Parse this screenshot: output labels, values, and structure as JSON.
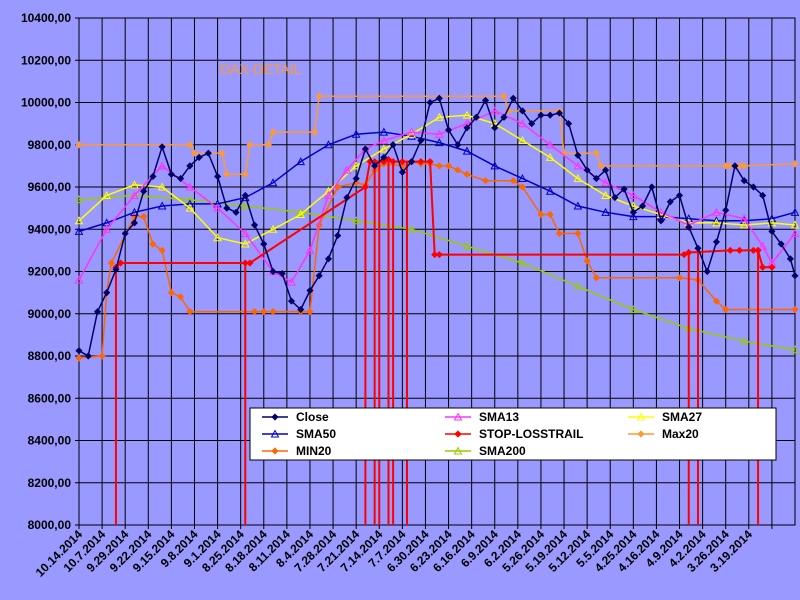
{
  "chart_data": {
    "type": "line",
    "title": "DAX-DETAIL",
    "title_color": "#ff9933",
    "ylim": [
      8000,
      10400
    ],
    "ytick_values": [
      8000,
      8200,
      8400,
      8600,
      8800,
      9000,
      9200,
      9400,
      9600,
      9800,
      10000,
      10200,
      10400
    ],
    "ytick_labels": [
      "8000,00",
      "8200,00",
      "8400,00",
      "8600,00",
      "8800,00",
      "9000,00",
      "9200,00",
      "9400,00",
      "9600,00",
      "9800,00",
      "10000,00",
      "10200,00",
      "10400,00"
    ],
    "x_index_range": [
      0,
      155
    ],
    "xtick_index": [
      0,
      5,
      10,
      15,
      20,
      25,
      30,
      35,
      40,
      45,
      50,
      55,
      60,
      65,
      70,
      75,
      80,
      85,
      90,
      95,
      100,
      105,
      110,
      115,
      120,
      125,
      130,
      135,
      140,
      145,
      150
    ],
    "xtick_labels": [
      "10.14.2014",
      "10.7.2014",
      "9.29.2014",
      "9.22.2014",
      "9.15.2014",
      "9.8.2014",
      "9.1.2014",
      "8.25.2014",
      "8.18.2014",
      "8.11.2014",
      "8.4.2014",
      "7.28.2014",
      "7.21.2014",
      "7.14.2014",
      "7.7.2014",
      "6.30.2014",
      "6.23.2014",
      "6.16.2014",
      "6.9.2014",
      "6.2.2014",
      "5.26.2014",
      "5.19.2014",
      "5.12.2014",
      "5.5.2014",
      "4.25.2014",
      "4.16.2014",
      "4.9.2014",
      "4.2.2014",
      "3.26.2014",
      "3.19.2014",
      ""
    ],
    "legend_placement": "bottom-center",
    "series": [
      {
        "name": "Close",
        "color": "#000066",
        "marker": "diamond",
        "points": [
          [
            0,
            8825
          ],
          [
            2,
            8800
          ],
          [
            4,
            9010
          ],
          [
            6,
            9100
          ],
          [
            8,
            9210
          ],
          [
            10,
            9380
          ],
          [
            12,
            9430
          ],
          [
            14,
            9580
          ],
          [
            16,
            9650
          ],
          [
            18,
            9790
          ],
          [
            20,
            9660
          ],
          [
            22,
            9640
          ],
          [
            24,
            9700
          ],
          [
            26,
            9740
          ],
          [
            28,
            9760
          ],
          [
            30,
            9650
          ],
          [
            32,
            9500
          ],
          [
            34,
            9480
          ],
          [
            36,
            9560
          ],
          [
            38,
            9420
          ],
          [
            40,
            9330
          ],
          [
            42,
            9200
          ],
          [
            44,
            9190
          ],
          [
            46,
            9060
          ],
          [
            48,
            9020
          ],
          [
            50,
            9110
          ],
          [
            52,
            9180
          ],
          [
            54,
            9260
          ],
          [
            56,
            9370
          ],
          [
            58,
            9550
          ],
          [
            60,
            9640
          ],
          [
            62,
            9780
          ],
          [
            64,
            9700
          ],
          [
            66,
            9740
          ],
          [
            68,
            9800
          ],
          [
            70,
            9670
          ],
          [
            72,
            9720
          ],
          [
            74,
            9820
          ],
          [
            76,
            10000
          ],
          [
            78,
            10020
          ],
          [
            80,
            9870
          ],
          [
            82,
            9800
          ],
          [
            84,
            9880
          ],
          [
            86,
            9930
          ],
          [
            88,
            10010
          ],
          [
            90,
            9880
          ],
          [
            92,
            9930
          ],
          [
            94,
            10020
          ],
          [
            96,
            9960
          ],
          [
            98,
            9900
          ],
          [
            100,
            9940
          ],
          [
            102,
            9940
          ],
          [
            104,
            9950
          ],
          [
            106,
            9900
          ],
          [
            108,
            9750
          ],
          [
            110,
            9680
          ],
          [
            112,
            9640
          ],
          [
            114,
            9680
          ],
          [
            116,
            9550
          ],
          [
            118,
            9590
          ],
          [
            120,
            9480
          ],
          [
            122,
            9510
          ],
          [
            124,
            9600
          ],
          [
            126,
            9440
          ],
          [
            128,
            9530
          ],
          [
            130,
            9560
          ],
          [
            132,
            9410
          ],
          [
            134,
            9310
          ],
          [
            136,
            9200
          ],
          [
            138,
            9340
          ],
          [
            140,
            9490
          ],
          [
            142,
            9700
          ],
          [
            144,
            9630
          ],
          [
            146,
            9600
          ],
          [
            148,
            9560
          ],
          [
            150,
            9390
          ],
          [
            152,
            9330
          ],
          [
            154,
            9260
          ],
          [
            155,
            9180
          ]
        ]
      },
      {
        "name": "SMA13",
        "color": "#ff33ff",
        "marker": "triangle",
        "points": [
          [
            0,
            9160
          ],
          [
            6,
            9400
          ],
          [
            12,
            9560
          ],
          [
            18,
            9700
          ],
          [
            24,
            9600
          ],
          [
            30,
            9500
          ],
          [
            36,
            9380
          ],
          [
            42,
            9200
          ],
          [
            46,
            9150
          ],
          [
            50,
            9300
          ],
          [
            54,
            9560
          ],
          [
            58,
            9680
          ],
          [
            62,
            9780
          ],
          [
            66,
            9820
          ],
          [
            72,
            9860
          ],
          [
            78,
            9850
          ],
          [
            84,
            9900
          ],
          [
            90,
            9960
          ],
          [
            96,
            9900
          ],
          [
            102,
            9800
          ],
          [
            108,
            9700
          ],
          [
            114,
            9620
          ],
          [
            120,
            9560
          ],
          [
            126,
            9480
          ],
          [
            132,
            9420
          ],
          [
            138,
            9480
          ],
          [
            144,
            9450
          ],
          [
            148,
            9320
          ],
          [
            150,
            9240
          ],
          [
            155,
            9380
          ]
        ]
      },
      {
        "name": "SMA27",
        "color": "#ffff00",
        "marker": "triangle",
        "points": [
          [
            0,
            9440
          ],
          [
            6,
            9560
          ],
          [
            12,
            9610
          ],
          [
            18,
            9600
          ],
          [
            24,
            9500
          ],
          [
            30,
            9360
          ],
          [
            36,
            9330
          ],
          [
            42,
            9400
          ],
          [
            48,
            9470
          ],
          [
            54,
            9580
          ],
          [
            60,
            9700
          ],
          [
            66,
            9780
          ],
          [
            72,
            9850
          ],
          [
            78,
            9930
          ],
          [
            84,
            9940
          ],
          [
            90,
            9900
          ],
          [
            96,
            9820
          ],
          [
            102,
            9740
          ],
          [
            108,
            9640
          ],
          [
            114,
            9560
          ],
          [
            120,
            9510
          ],
          [
            126,
            9470
          ],
          [
            132,
            9430
          ],
          [
            138,
            9430
          ],
          [
            144,
            9420
          ],
          [
            150,
            9430
          ],
          [
            155,
            9420
          ]
        ]
      },
      {
        "name": "SMA50",
        "color": "#0000cc",
        "marker": "triangle",
        "points": [
          [
            0,
            9390
          ],
          [
            6,
            9430
          ],
          [
            12,
            9480
          ],
          [
            18,
            9510
          ],
          [
            24,
            9520
          ],
          [
            30,
            9520
          ],
          [
            36,
            9550
          ],
          [
            42,
            9620
          ],
          [
            48,
            9720
          ],
          [
            54,
            9800
          ],
          [
            60,
            9850
          ],
          [
            66,
            9860
          ],
          [
            72,
            9840
          ],
          [
            78,
            9810
          ],
          [
            84,
            9770
          ],
          [
            90,
            9700
          ],
          [
            96,
            9640
          ],
          [
            102,
            9580
          ],
          [
            108,
            9510
          ],
          [
            114,
            9480
          ],
          [
            120,
            9460
          ],
          [
            126,
            9460
          ],
          [
            132,
            9450
          ],
          [
            138,
            9440
          ],
          [
            144,
            9440
          ],
          [
            150,
            9450
          ],
          [
            155,
            9480
          ]
        ]
      },
      {
        "name": "STOP-LOSSTRAIL",
        "color": "#ff0000",
        "marker": "diamond",
        "points": [
          [
            8,
            9220
          ],
          [
            9,
            9240
          ],
          [
            36,
            9240
          ],
          [
            37,
            9240
          ],
          [
            62,
            9600
          ],
          [
            63,
            9720
          ],
          [
            64,
            9720
          ],
          [
            66,
            9720
          ],
          [
            67,
            9730
          ],
          [
            68,
            9720
          ],
          [
            70,
            9720
          ],
          [
            72,
            9720
          ],
          [
            74,
            9720
          ],
          [
            76,
            9720
          ],
          [
            77,
            9280
          ],
          [
            78,
            9280
          ],
          [
            131,
            9280
          ],
          [
            132,
            9290
          ],
          [
            141,
            9300
          ],
          [
            143,
            9300
          ],
          [
            146,
            9300
          ],
          [
            147,
            9300
          ],
          [
            148,
            9220
          ],
          [
            150,
            9220
          ]
        ],
        "drops": [
          8,
          36,
          62,
          64,
          65,
          67,
          68,
          71,
          132,
          134,
          147
        ]
      },
      {
        "name": "Max20",
        "color": "#ff9933",
        "marker": "diamond",
        "points": [
          [
            0,
            9800
          ],
          [
            24,
            9800
          ],
          [
            25,
            9760
          ],
          [
            31,
            9760
          ],
          [
            32,
            9660
          ],
          [
            36,
            9660
          ],
          [
            37,
            9800
          ],
          [
            41,
            9800
          ],
          [
            42,
            9860
          ],
          [
            51,
            9860
          ],
          [
            52,
            10030
          ],
          [
            92,
            10030
          ],
          [
            93,
            9960
          ],
          [
            104,
            9960
          ],
          [
            105,
            9760
          ],
          [
            112,
            9760
          ],
          [
            113,
            9700
          ],
          [
            140,
            9700
          ],
          [
            141,
            9700
          ],
          [
            143,
            9700
          ],
          [
            144,
            9700
          ],
          [
            155,
            9710
          ]
        ]
      },
      {
        "name": "MIN20",
        "color": "#ff6600",
        "marker": "diamond",
        "points": [
          [
            0,
            8790
          ],
          [
            5,
            8800
          ],
          [
            6,
            9100
          ],
          [
            7,
            9240
          ],
          [
            12,
            9460
          ],
          [
            14,
            9460
          ],
          [
            16,
            9330
          ],
          [
            18,
            9300
          ],
          [
            20,
            9100
          ],
          [
            22,
            9080
          ],
          [
            24,
            9010
          ],
          [
            38,
            9010
          ],
          [
            40,
            9010
          ],
          [
            42,
            9010
          ],
          [
            48,
            9010
          ],
          [
            50,
            9010
          ],
          [
            52,
            9420
          ],
          [
            56,
            9600
          ],
          [
            60,
            9620
          ],
          [
            62,
            9610
          ],
          [
            64,
            9680
          ],
          [
            66,
            9710
          ],
          [
            70,
            9700
          ],
          [
            72,
            9720
          ],
          [
            74,
            9710
          ],
          [
            76,
            9710
          ],
          [
            78,
            9700
          ],
          [
            80,
            9700
          ],
          [
            82,
            9680
          ],
          [
            84,
            9660
          ],
          [
            88,
            9630
          ],
          [
            94,
            9630
          ],
          [
            96,
            9600
          ],
          [
            100,
            9470
          ],
          [
            102,
            9470
          ],
          [
            104,
            9380
          ],
          [
            108,
            9380
          ],
          [
            110,
            9250
          ],
          [
            112,
            9170
          ],
          [
            130,
            9170
          ],
          [
            134,
            9160
          ],
          [
            138,
            9060
          ],
          [
            140,
            9020
          ],
          [
            155,
            9020
          ]
        ]
      },
      {
        "name": "SMA200",
        "color": "#99cc00",
        "marker": "triangle",
        "points": [
          [
            0,
            9540
          ],
          [
            12,
            9560
          ],
          [
            24,
            9540
          ],
          [
            36,
            9510
          ],
          [
            48,
            9480
          ],
          [
            60,
            9440
          ],
          [
            72,
            9400
          ],
          [
            84,
            9320
          ],
          [
            96,
            9240
          ],
          [
            108,
            9130
          ],
          [
            120,
            9020
          ],
          [
            132,
            8930
          ],
          [
            144,
            8870
          ],
          [
            155,
            8830
          ]
        ]
      }
    ]
  }
}
